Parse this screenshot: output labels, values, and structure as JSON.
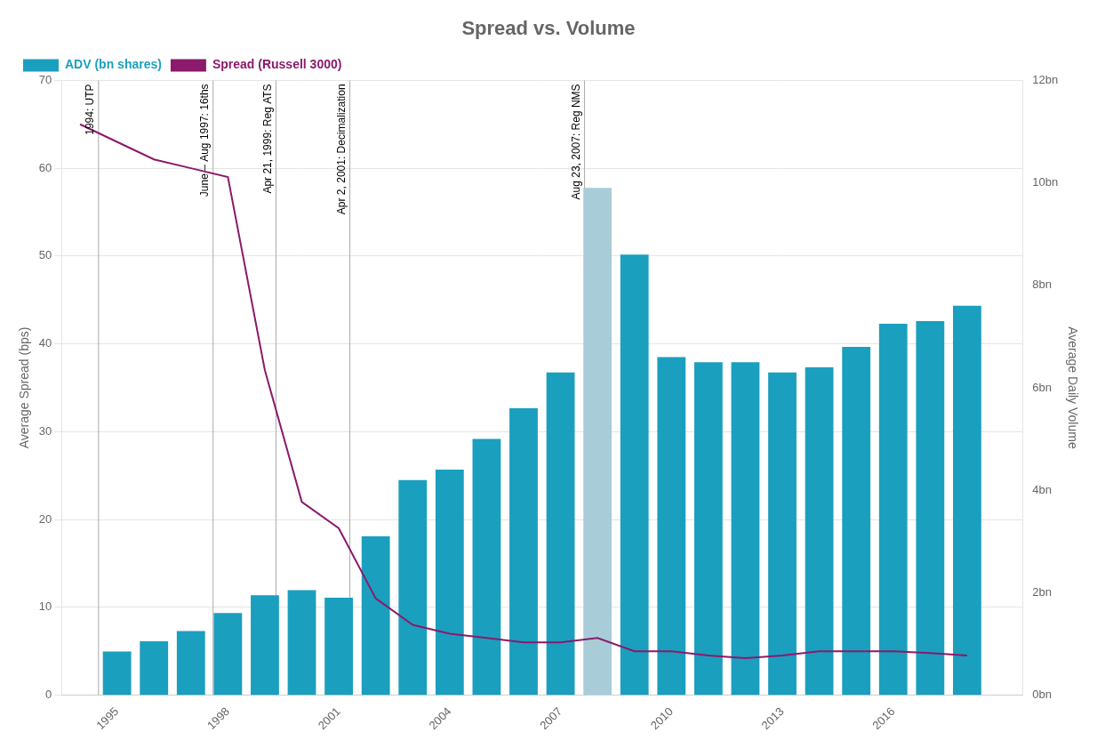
{
  "chart_data": {
    "type": "bar",
    "title": "Spread vs. Volume",
    "ylabel": "Average Spread (bps)",
    "y2label": "Average Daily Volume",
    "xlim": [
      1993.5,
      2019.5
    ],
    "xticks": [
      1995,
      1998,
      2001,
      2004,
      2007,
      2010,
      2013,
      2016
    ],
    "ylim": [
      0,
      70
    ],
    "yticks": [
      0,
      10,
      20,
      30,
      40,
      50,
      60,
      70
    ],
    "y2lim": [
      0,
      12
    ],
    "y2ticks": [
      {
        "value": 0,
        "label": "0bn"
      },
      {
        "value": 2,
        "label": "2bn"
      },
      {
        "value": 4,
        "label": "4bn"
      },
      {
        "value": 6,
        "label": "6bn"
      },
      {
        "value": 8,
        "label": "8bn"
      },
      {
        "value": 10,
        "label": "10bn"
      },
      {
        "value": 12,
        "label": "12bn"
      }
    ],
    "grid": true,
    "legend": "top left",
    "series": [
      {
        "name": "ADV (bn shares)",
        "type": "bar",
        "axis": "y2",
        "color": "#1b9fbe",
        "colors": [
          "#1b9fbe",
          "#1b9fbe",
          "#1b9fbe",
          "#1b9fbe",
          "#1b9fbe",
          "#1b9fbe",
          "#1b9fbe",
          "#1b9fbe",
          "#1b9fbe",
          "#1b9fbe",
          "#1b9fbe",
          "#1b9fbe",
          "#1b9fbe",
          "#a8cdd8",
          "#1b9fbe",
          "#1b9fbe",
          "#1b9fbe",
          "#1b9fbe",
          "#1b9fbe",
          "#1b9fbe",
          "#1b9fbe",
          "#1b9fbe",
          "#1b9fbe",
          "#1b9fbe"
        ],
        "x": [
          1995,
          1996,
          1997,
          1998,
          1999,
          2000,
          2001,
          2002,
          2003,
          2004,
          2005,
          2006,
          2007,
          2008,
          2009,
          2010,
          2011,
          2012,
          2013,
          2014,
          2015,
          2016,
          2017,
          2018
        ],
        "values": [
          0.85,
          1.05,
          1.25,
          1.6,
          1.95,
          2.05,
          1.9,
          3.1,
          4.2,
          4.4,
          5.0,
          5.6,
          6.3,
          9.9,
          8.6,
          6.6,
          6.5,
          6.5,
          6.3,
          6.4,
          6.8,
          7.25,
          7.3,
          7.6
        ]
      },
      {
        "name": "Spread (Russell 3000)",
        "type": "line",
        "color": "#8b1a6b",
        "x": [
          1994,
          1995,
          1996,
          1997,
          1998,
          1999,
          2000,
          2001,
          2002,
          2003,
          2004,
          2005,
          2006,
          2007,
          2008,
          2009,
          2010,
          2011,
          2012,
          2013,
          2014,
          2015,
          2016,
          2017,
          2018
        ],
        "values": [
          65.0,
          63.0,
          61.0,
          60.0,
          59.0,
          37.0,
          22.0,
          19.0,
          11.0,
          8.0,
          7.0,
          6.5,
          6.0,
          6.0,
          6.5,
          5.0,
          5.0,
          4.5,
          4.2,
          4.5,
          5.0,
          5.0,
          5.0,
          4.8,
          4.5
        ]
      }
    ],
    "annotations": [
      {
        "x": 1994.5,
        "label": "1994: UTP"
      },
      {
        "x": 1997.6,
        "label": "June – Aug 1997: 16ths"
      },
      {
        "x": 1999.3,
        "label": "Apr 21, 1999: Reg ATS"
      },
      {
        "x": 2001.3,
        "label": "Apr 2, 2001: Decimalization"
      },
      {
        "x": 2007.65,
        "label": "Aug 23, 2007: Reg NMS"
      }
    ]
  }
}
